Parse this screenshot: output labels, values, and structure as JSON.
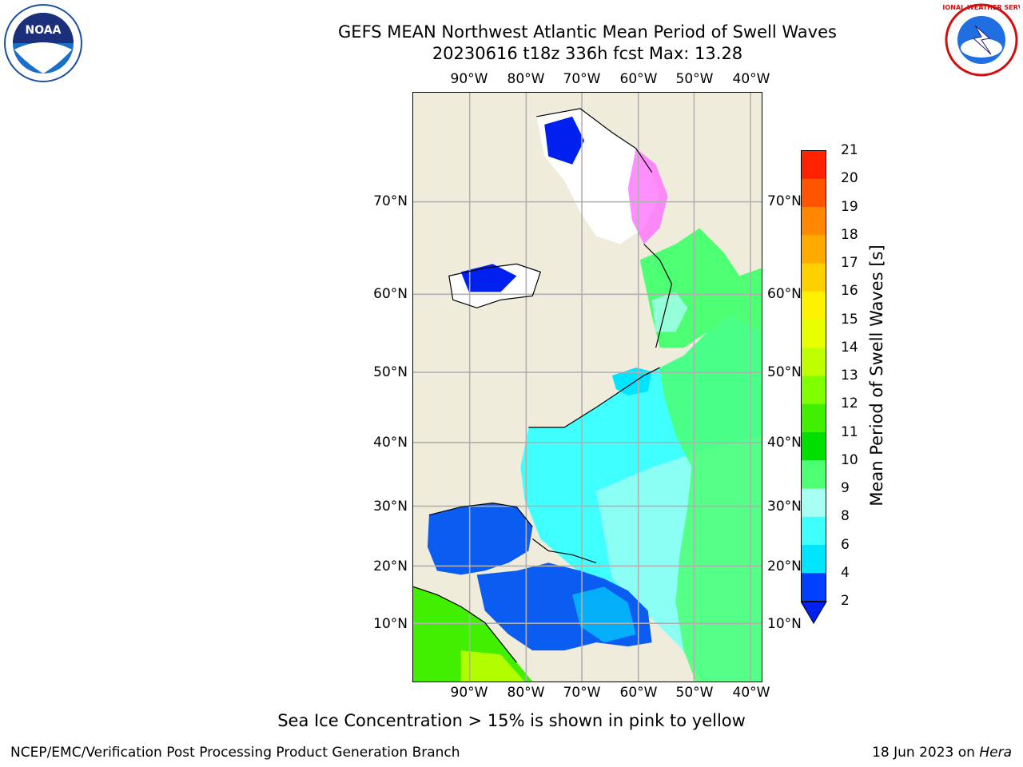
{
  "header": {
    "title_line1": "GEFS MEAN Northwest Atlantic Mean Period of Swell Waves",
    "title_line2": "20230616 t18z 336h fcst   Max: 13.28"
  },
  "map": {
    "lon_labels": [
      "90°W",
      "80°W",
      "70°W",
      "60°W",
      "50°W",
      "40°W"
    ],
    "lat_labels": [
      "70°N",
      "60°N",
      "50°N",
      "40°N",
      "30°N",
      "20°N",
      "10°N"
    ],
    "land_color": "#efecdc",
    "gridline_color": "#b0b0b0"
  },
  "colorbar": {
    "label": "Mean Period of Swell Waves [s]",
    "ticks": [
      "2",
      "4",
      "6",
      "8",
      "9",
      "10",
      "11",
      "12",
      "13",
      "14",
      "15",
      "16",
      "17",
      "18",
      "19",
      "20",
      "21"
    ],
    "colors": [
      "#0040ff",
      "#00e5ff",
      "#40ffff",
      "#a6fff2",
      "#4cff73",
      "#00e000",
      "#40f000",
      "#80ff00",
      "#bfff00",
      "#e8ff00",
      "#fff200",
      "#ffd000",
      "#ffaa00",
      "#ff8800",
      "#ff5500",
      "#ff2200",
      "#ff0000"
    ],
    "under_color": "#0020f0"
  },
  "note": "Sea Ice Concentration > 15% is shown in pink to yellow",
  "footer": {
    "left": "NCEP/EMC/Verification Post Processing Product Generation Branch",
    "right_date": "18 Jun 2023 on ",
    "right_host": "Hera"
  },
  "logos": {
    "noaa_text": "NOAA",
    "nws_text": "NATIONAL WEATHER SERVICE"
  }
}
